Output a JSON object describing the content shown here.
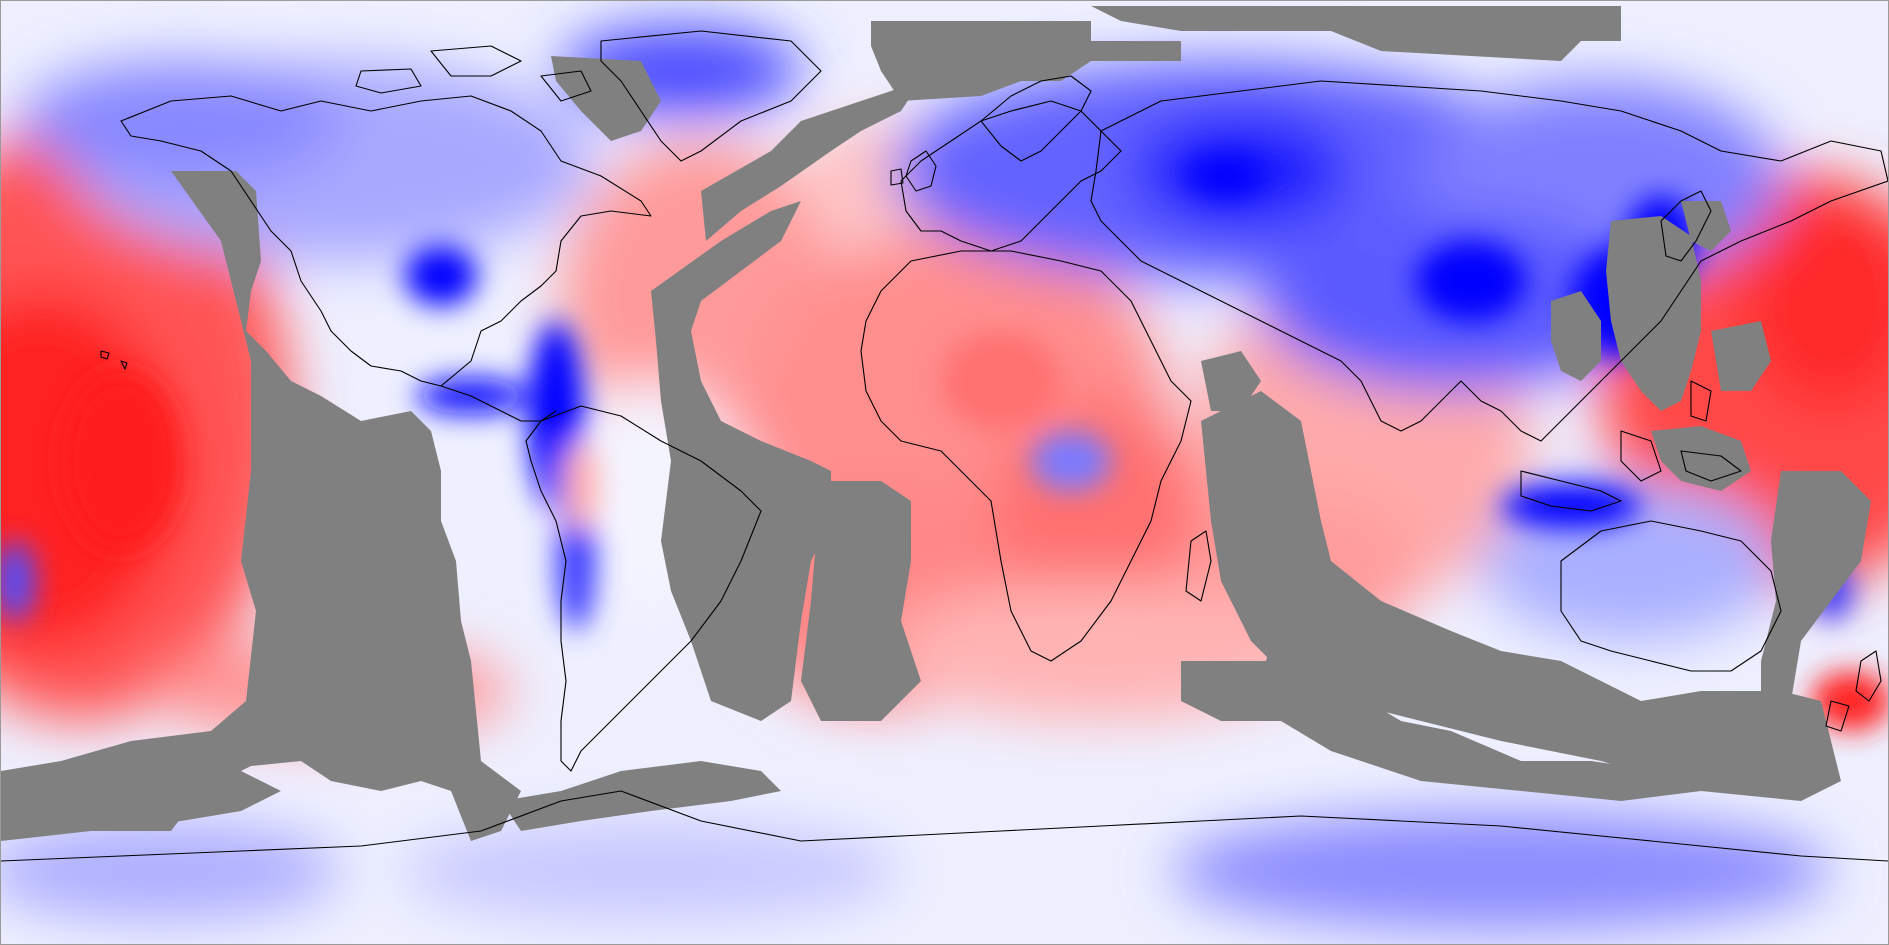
{
  "map": {
    "projection": "equirectangular",
    "extent": {
      "lon": [
        -180,
        180
      ],
      "lat": [
        -90,
        90
      ]
    },
    "colormap": {
      "negative": "#ff0000",
      "neutral": "#ffffff",
      "positive": "#0000ff",
      "missing": "#808080",
      "coastline": "#000000"
    },
    "title": "",
    "colorbar": ""
  }
}
